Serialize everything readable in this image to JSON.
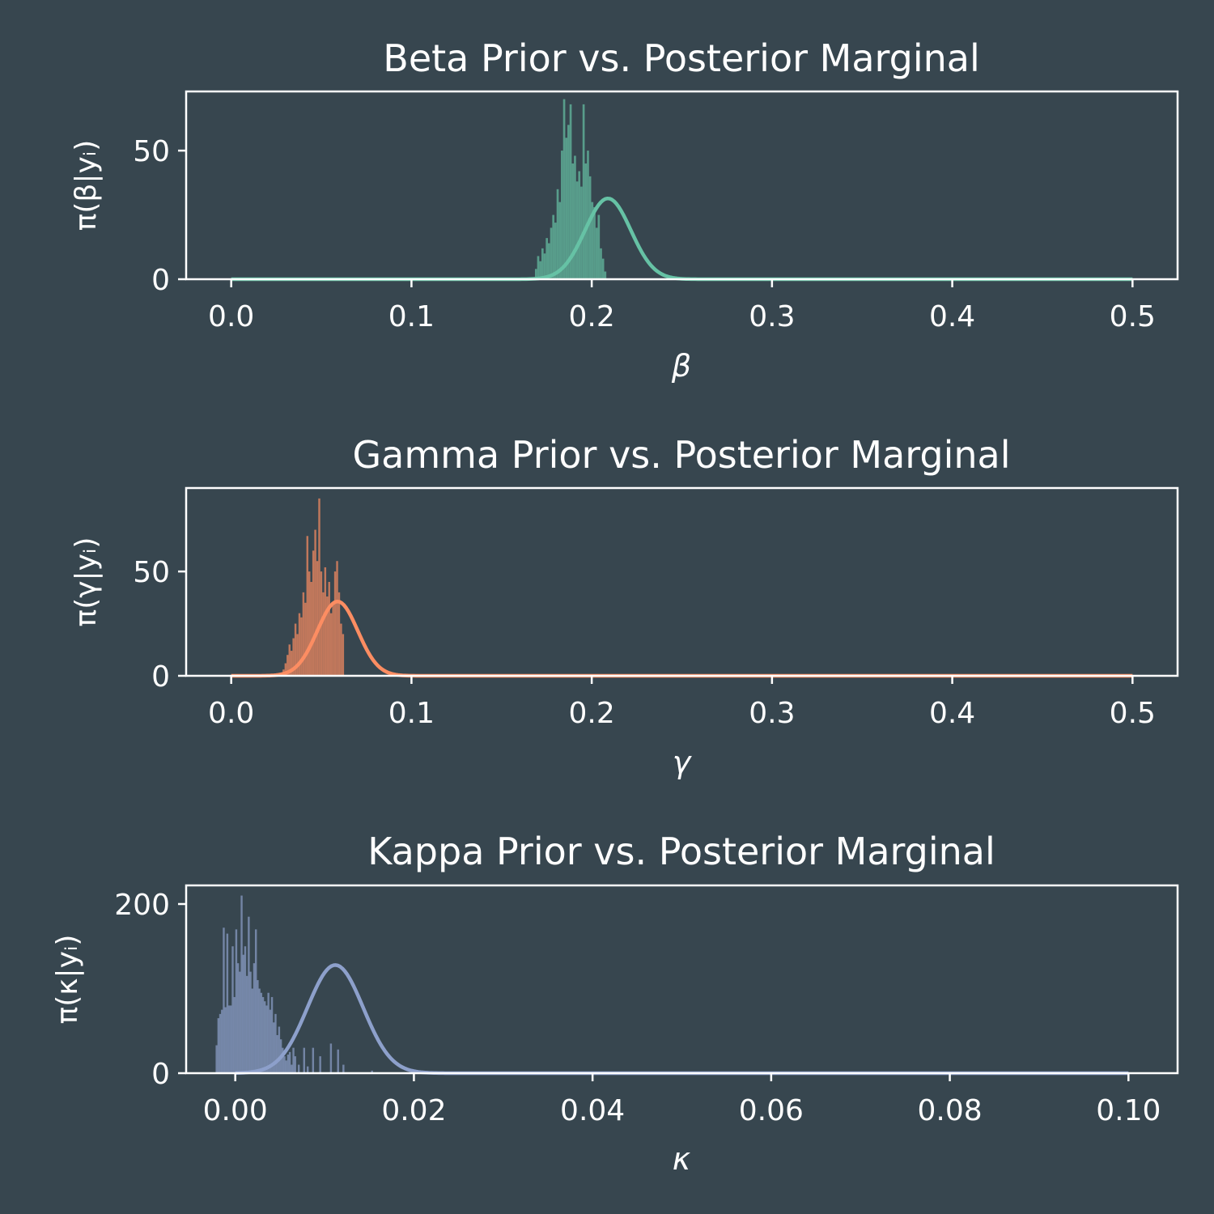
{
  "figure": {
    "background": "#37464f",
    "axis_color": "#ffffff"
  },
  "chart_data": [
    {
      "type": "bar+line",
      "title": "Beta Prior vs. Posterior Marginal",
      "xlabel": "β",
      "ylabel": "π(β|yᵢ)",
      "xlim": [
        -0.025,
        0.525
      ],
      "ylim": [
        0,
        73
      ],
      "xticks": [
        0.0,
        0.1,
        0.2,
        0.3,
        0.4,
        0.5
      ],
      "xtick_labels": [
        "0.0",
        "0.1",
        "0.2",
        "0.3",
        "0.4",
        "0.5"
      ],
      "yticks": [
        0,
        50
      ],
      "ytick_labels": [
        "0",
        "50"
      ],
      "color": "#66c2a5",
      "grid": false,
      "legend": null,
      "histogram": {
        "name": "posterior samples",
        "bin_width": 0.0012,
        "bins": [
          [
            0.1685,
            4
          ],
          [
            0.1697,
            9
          ],
          [
            0.1709,
            7
          ],
          [
            0.1721,
            12
          ],
          [
            0.1733,
            10
          ],
          [
            0.1745,
            16
          ],
          [
            0.1757,
            14
          ],
          [
            0.1769,
            20
          ],
          [
            0.1781,
            25
          ],
          [
            0.1793,
            22
          ],
          [
            0.1805,
            35
          ],
          [
            0.1817,
            30
          ],
          [
            0.1829,
            50
          ],
          [
            0.1841,
            70
          ],
          [
            0.1853,
            55
          ],
          [
            0.1865,
            60
          ],
          [
            0.1877,
            68
          ],
          [
            0.1889,
            45
          ],
          [
            0.1901,
            48
          ],
          [
            0.1913,
            38
          ],
          [
            0.1925,
            42
          ],
          [
            0.1937,
            36
          ],
          [
            0.1949,
            68
          ],
          [
            0.1961,
            45
          ],
          [
            0.1973,
            50
          ],
          [
            0.1985,
            40
          ],
          [
            0.1997,
            30
          ],
          [
            0.2009,
            28
          ],
          [
            0.2021,
            20
          ],
          [
            0.2033,
            25
          ],
          [
            0.2045,
            12
          ],
          [
            0.2057,
            8
          ],
          [
            0.2069,
            3
          ]
        ]
      },
      "prior_curve": {
        "name": "prior",
        "type": "normal",
        "mean": 0.209,
        "sd": 0.0127,
        "x_range": [
          0.0,
          0.5
        ]
      }
    },
    {
      "type": "bar+line",
      "title": "Gamma Prior vs. Posterior Marginal",
      "xlabel": "γ",
      "ylabel": "π(γ|yᵢ)",
      "xlim": [
        -0.025,
        0.525
      ],
      "ylim": [
        0,
        90
      ],
      "xticks": [
        0.0,
        0.1,
        0.2,
        0.3,
        0.4,
        0.5
      ],
      "xtick_labels": [
        "0.0",
        "0.1",
        "0.2",
        "0.3",
        "0.4",
        "0.5"
      ],
      "yticks": [
        0,
        50
      ],
      "ytick_labels": [
        "0",
        "50"
      ],
      "color": "#fc8d62",
      "grid": false,
      "legend": null,
      "histogram": {
        "name": "posterior samples",
        "bin_width": 0.0011,
        "bins": [
          [
            0.0285,
            3
          ],
          [
            0.0296,
            6
          ],
          [
            0.0307,
            10
          ],
          [
            0.0318,
            15
          ],
          [
            0.0329,
            12
          ],
          [
            0.034,
            18
          ],
          [
            0.0351,
            25
          ],
          [
            0.0362,
            20
          ],
          [
            0.0373,
            30
          ],
          [
            0.0384,
            28
          ],
          [
            0.0395,
            40
          ],
          [
            0.0406,
            35
          ],
          [
            0.0417,
            67
          ],
          [
            0.0428,
            50
          ],
          [
            0.0439,
            45
          ],
          [
            0.045,
            60
          ],
          [
            0.0461,
            70
          ],
          [
            0.0472,
            55
          ],
          [
            0.0483,
            85
          ],
          [
            0.0494,
            50
          ],
          [
            0.0505,
            40
          ],
          [
            0.0516,
            52
          ],
          [
            0.0527,
            38
          ],
          [
            0.0538,
            45
          ],
          [
            0.0549,
            30
          ],
          [
            0.056,
            35
          ],
          [
            0.0571,
            50
          ],
          [
            0.0582,
            55
          ],
          [
            0.0593,
            40
          ],
          [
            0.0604,
            25
          ],
          [
            0.0615,
            20
          ]
        ]
      },
      "prior_curve": {
        "name": "prior",
        "type": "normal",
        "mean": 0.059,
        "sd": 0.0112,
        "x_range": [
          0.0,
          0.5
        ]
      }
    },
    {
      "type": "bar+line",
      "title": "Kappa Prior vs. Posterior Marginal",
      "xlabel": "κ",
      "ylabel": "π(κ|yᵢ)",
      "xlim": [
        -0.0055,
        0.1055
      ],
      "ylim": [
        0,
        222
      ],
      "xticks": [
        0.0,
        0.02,
        0.04,
        0.06,
        0.08,
        0.1
      ],
      "xtick_labels": [
        "0.00",
        "0.02",
        "0.04",
        "0.06",
        "0.08",
        "0.10"
      ],
      "yticks": [
        0,
        200
      ],
      "ytick_labels": [
        "0",
        "200"
      ],
      "color": "#8da0cb",
      "grid": false,
      "legend": null,
      "histogram": {
        "name": "posterior samples",
        "bin_width": 0.00022,
        "bins": [
          [
            -0.0022,
            33
          ],
          [
            -0.002,
            65
          ],
          [
            -0.0018,
            70
          ],
          [
            -0.0016,
            75
          ],
          [
            -0.0014,
            172
          ],
          [
            -0.0012,
            78
          ],
          [
            -0.001,
            165
          ],
          [
            -0.0008,
            80
          ],
          [
            -0.0006,
            80
          ],
          [
            -0.0004,
            150
          ],
          [
            -0.0002,
            90
          ],
          [
            0.0,
            170
          ],
          [
            0.0002,
            130
          ],
          [
            0.0004,
            120
          ],
          [
            0.0006,
            210
          ],
          [
            0.0008,
            140
          ],
          [
            0.001,
            150
          ],
          [
            0.0012,
            115
          ],
          [
            0.0014,
            185
          ],
          [
            0.0016,
            120
          ],
          [
            0.0018,
            100
          ],
          [
            0.002,
            130
          ],
          [
            0.0022,
            170
          ],
          [
            0.0024,
            110
          ],
          [
            0.0026,
            100
          ],
          [
            0.0028,
            95
          ],
          [
            0.003,
            90
          ],
          [
            0.0032,
            85
          ],
          [
            0.0034,
            80
          ],
          [
            0.0036,
            95
          ],
          [
            0.0038,
            75
          ],
          [
            0.004,
            90
          ],
          [
            0.0042,
            60
          ],
          [
            0.0044,
            70
          ],
          [
            0.0046,
            45
          ],
          [
            0.0048,
            55
          ],
          [
            0.005,
            40
          ],
          [
            0.0052,
            30
          ],
          [
            0.0054,
            20
          ],
          [
            0.0056,
            15
          ],
          [
            0.0058,
            22
          ],
          [
            0.006,
            25
          ],
          [
            0.0062,
            10
          ],
          [
            0.0064,
            30
          ],
          [
            0.0066,
            20
          ],
          [
            0.007,
            10
          ],
          [
            0.0076,
            30
          ],
          [
            0.008,
            8
          ],
          [
            0.0086,
            30
          ],
          [
            0.0094,
            20
          ],
          [
            0.0106,
            35
          ],
          [
            0.0114,
            28
          ],
          [
            0.012,
            10
          ],
          [
            0.0152,
            3
          ]
        ]
      },
      "prior_curve": {
        "name": "prior",
        "type": "normal",
        "mean": 0.0112,
        "sd": 0.00312,
        "x_range": [
          0.0,
          0.1
        ]
      }
    }
  ]
}
